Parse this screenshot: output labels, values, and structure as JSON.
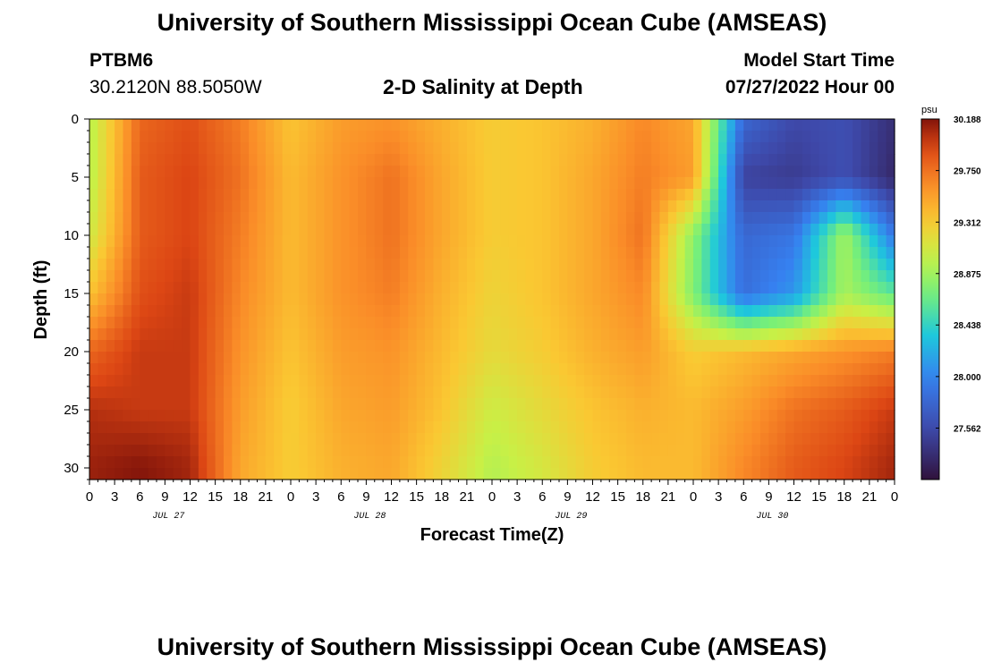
{
  "header": {
    "title_top": "University of Southern Mississippi Ocean Cube (AMSEAS)",
    "title_bottom": "University of Southern Mississippi Ocean Cube (AMSEAS)",
    "station": "PTBM6",
    "coords": "30.2120N  88.5050W",
    "subtitle": "2-D Salinity at Depth",
    "start_label": "Model Start Time",
    "start_value": "07/27/2022 Hour 00"
  },
  "chart_data": {
    "type": "heatmap",
    "title": "2-D Salinity at Depth",
    "xlabel": "Forecast Time(Z)",
    "ylabel": "Depth (ft)",
    "x_ticks": [
      "0",
      "3",
      "6",
      "9",
      "12",
      "15",
      "18",
      "21",
      "0",
      "3",
      "6",
      "9",
      "12",
      "15",
      "18",
      "21",
      "0",
      "3",
      "6",
      "9",
      "12",
      "15",
      "18",
      "21",
      "0",
      "3",
      "6",
      "9",
      "12",
      "15",
      "18",
      "21",
      "0"
    ],
    "x_range_hours": [
      0,
      96
    ],
    "date_labels": [
      {
        "label": "JUL 27",
        "hour": 9
      },
      {
        "label": "JUL 28",
        "hour": 33
      },
      {
        "label": "JUL 29",
        "hour": 57
      },
      {
        "label": "JUL 30",
        "hour": 81
      }
    ],
    "y_ticks": [
      "0",
      "5",
      "10",
      "15",
      "20",
      "25",
      "30"
    ],
    "y_range_ft": [
      0,
      31
    ],
    "colorbar": {
      "unit": "psu",
      "labels": [
        "30.188",
        "29.750",
        "29.312",
        "28.875",
        "28.438",
        "28.000",
        "27.562"
      ],
      "min": 27.125,
      "max": 30.188
    },
    "time_hours": [
      0,
      6,
      12,
      18,
      24,
      30,
      36,
      42,
      48,
      54,
      60,
      66,
      72,
      78,
      84,
      90,
      96
    ],
    "depth_ft": [
      0,
      5,
      10,
      15,
      20,
      25,
      30
    ],
    "salinity_psu": [
      [
        28.95,
        29.8,
        29.9,
        29.7,
        29.35,
        29.55,
        29.6,
        29.45,
        29.3,
        29.35,
        29.45,
        29.65,
        29.5,
        27.8,
        27.55,
        27.6,
        27.35
      ],
      [
        28.95,
        29.85,
        29.95,
        29.75,
        29.4,
        29.6,
        29.75,
        29.5,
        29.3,
        29.35,
        29.5,
        29.7,
        29.55,
        27.5,
        27.45,
        27.6,
        27.3
      ],
      [
        29.05,
        29.85,
        29.95,
        29.7,
        29.4,
        29.6,
        29.75,
        29.5,
        29.3,
        29.35,
        29.5,
        29.75,
        28.8,
        27.8,
        27.9,
        28.9,
        27.9
      ],
      [
        29.35,
        29.9,
        30.0,
        29.65,
        29.4,
        29.6,
        29.7,
        29.45,
        29.25,
        29.35,
        29.5,
        29.65,
        28.75,
        27.85,
        28.1,
        28.9,
        28.6
      ],
      [
        29.8,
        30.0,
        30.0,
        29.6,
        29.35,
        29.55,
        29.6,
        29.4,
        29.2,
        29.3,
        29.45,
        29.55,
        29.3,
        29.4,
        29.5,
        29.6,
        29.7
      ],
      [
        30.05,
        30.0,
        30.0,
        29.55,
        29.3,
        29.5,
        29.55,
        29.35,
        29.05,
        29.2,
        29.35,
        29.45,
        29.4,
        29.55,
        29.75,
        29.85,
        30.0
      ],
      [
        30.12,
        30.18,
        30.1,
        29.5,
        29.3,
        29.45,
        29.5,
        29.25,
        28.95,
        29.1,
        29.3,
        29.4,
        29.4,
        29.65,
        29.85,
        29.95,
        30.1
      ]
    ]
  }
}
